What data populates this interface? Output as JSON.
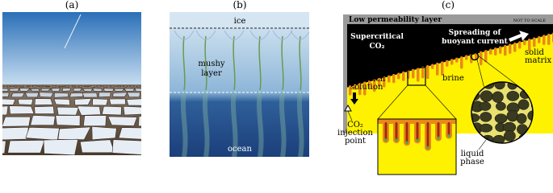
{
  "panel_a": {
    "label": "(a)"
  },
  "panel_b": {
    "label": "(b)",
    "ice": "ice",
    "mushy_layer": [
      "mushy",
      "layer"
    ],
    "ocean": "ocean"
  },
  "panel_c": {
    "label": "(c)",
    "top_layer": "Low permeability layer",
    "scale_note": "NOT TO SCALE",
    "co2": [
      "Supercritical",
      "CO₂"
    ],
    "spreading": [
      "Spreading of",
      "buoyant current"
    ],
    "solid_matrix": [
      "solid",
      "matrix"
    ],
    "co2_solution": [
      "CO₂-rich",
      "solution"
    ],
    "brine": "brine",
    "injection": [
      "CO₂",
      "injection",
      "point"
    ],
    "liquid_phase": [
      "liquid",
      "phase"
    ]
  }
}
